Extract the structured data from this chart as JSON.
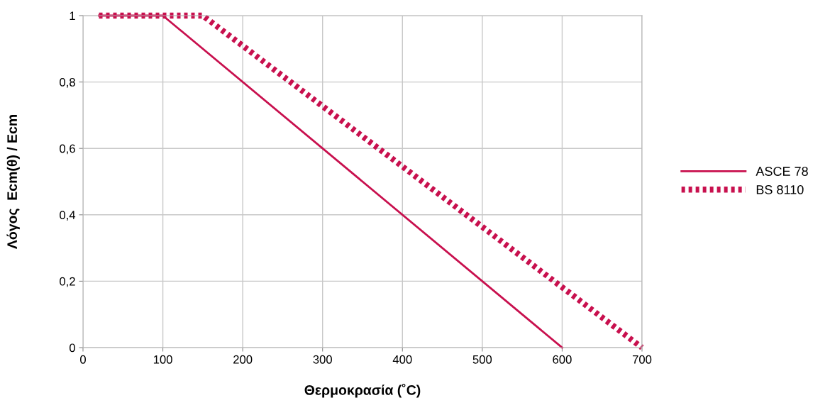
{
  "chart_data": {
    "type": "line",
    "xlabel": "Θερμοκρασία (˚C)",
    "ylabel": "Λόγος  Ecm(θ) / Ecm",
    "series": [
      {
        "name": "ASCE 78",
        "color": "#c8104e",
        "x": [
          20,
          100,
          600
        ],
        "values": [
          1,
          1,
          0
        ],
        "line_style": "solid"
      },
      {
        "name": "BS 8110",
        "color": "#c8104e",
        "x": [
          20,
          150,
          700
        ],
        "values": [
          1,
          1,
          0
        ],
        "line_style": "dotted"
      }
    ],
    "xlim": [
      0,
      700
    ],
    "xticks": [
      0,
      100,
      200,
      300,
      400,
      500,
      600,
      700
    ],
    "ylim": [
      0,
      1
    ],
    "yticks": [
      0,
      {
        "value": 0.2,
        "label": "0,2"
      },
      {
        "value": 0.4,
        "label": "0,4"
      },
      {
        "value": 0.6,
        "label": "0,6"
      },
      {
        "value": 0.8,
        "label": "0,8"
      },
      1
    ],
    "grid": true,
    "legend": "right",
    "marker": "none"
  }
}
